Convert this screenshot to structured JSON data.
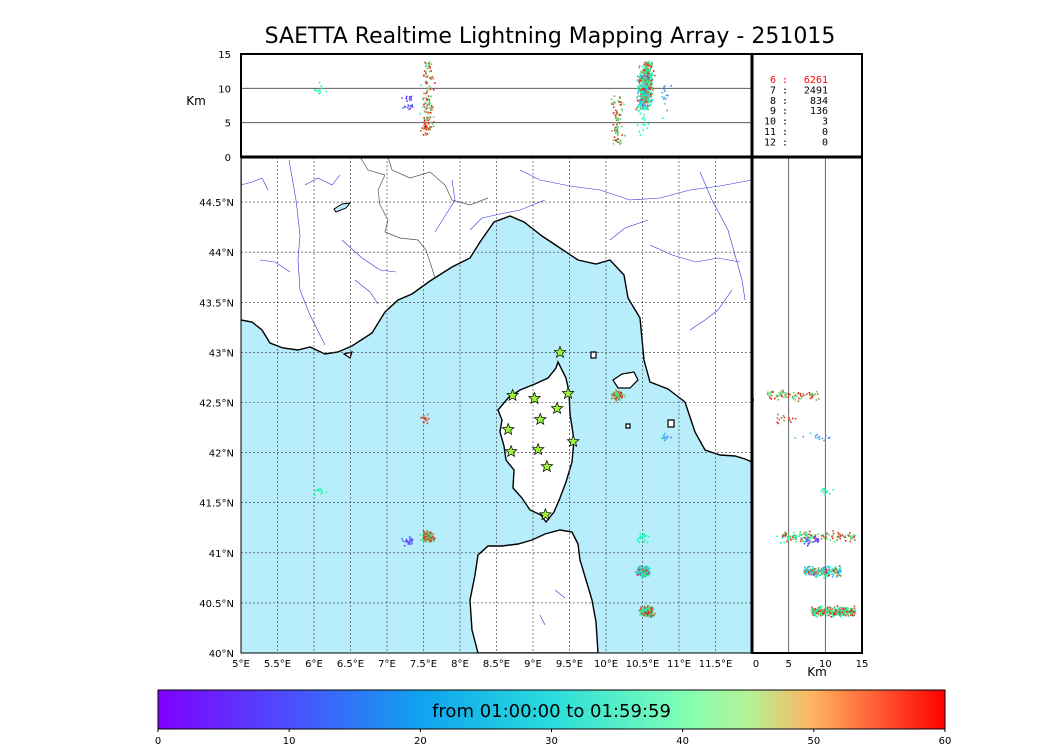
{
  "title": "SAETTA Realtime Lightning Mapping Array - 251015",
  "colors": {
    "sea": "#b8eefb",
    "land": "#ffffff",
    "coast": "#000000",
    "rivers": "#3333dd",
    "borders": "#555555",
    "station": "#9cf53a"
  },
  "altitude_panel": {
    "ylabel": "Km",
    "y_ticks": [
      "15",
      "10",
      "5",
      "0"
    ],
    "y_range": [
      0,
      15
    ],
    "horizontal_lines_km": [
      5,
      10
    ]
  },
  "side_panel": {
    "xlabel": "Km",
    "x_ticks": [
      "0",
      "5",
      "10",
      "15"
    ],
    "x_range": [
      0,
      15
    ],
    "vertical_lines_km": [
      5,
      10
    ]
  },
  "map": {
    "lon_range": [
      5,
      12
    ],
    "lat_range": [
      40,
      44.95
    ],
    "lon_ticks": [
      "5°E",
      "5.5°E",
      "6°E",
      "6.5°E",
      "7°E",
      "7.5°E",
      "8°E",
      "8.5°E",
      "9°E",
      "9.5°E",
      "10°E",
      "10.5°E",
      "11°E",
      "11.5°E"
    ],
    "lon_values": [
      5,
      5.5,
      6,
      6.5,
      7,
      7.5,
      8,
      8.5,
      9,
      9.5,
      10,
      10.5,
      11,
      11.5
    ],
    "lat_ticks": [
      "44.5°N",
      "44°N",
      "43.5°N",
      "43°N",
      "42.5°N",
      "42°N",
      "41.5°N",
      "41°N",
      "40.5°N",
      "40°N"
    ],
    "lat_values": [
      44.5,
      44,
      43.5,
      43,
      42.5,
      42,
      41.5,
      41,
      40.5,
      40
    ],
    "grid": "dotted",
    "stations": [
      {
        "lon": 9.37,
        "lat": 43.0
      },
      {
        "lon": 8.72,
        "lat": 42.57
      },
      {
        "lon": 9.02,
        "lat": 42.54
      },
      {
        "lon": 9.48,
        "lat": 42.59
      },
      {
        "lon": 9.33,
        "lat": 42.44
      },
      {
        "lon": 9.1,
        "lat": 42.33
      },
      {
        "lon": 8.66,
        "lat": 42.23
      },
      {
        "lon": 9.55,
        "lat": 42.11
      },
      {
        "lon": 8.7,
        "lat": 42.01
      },
      {
        "lon": 9.07,
        "lat": 42.03
      },
      {
        "lon": 9.19,
        "lat": 41.86
      },
      {
        "lon": 9.17,
        "lat": 41.38
      }
    ]
  },
  "stations_count_table": [
    {
      "stations": "6",
      "count": "6261",
      "highlight": true
    },
    {
      "stations": "7",
      "count": "2491",
      "highlight": false
    },
    {
      "stations": "8",
      "count": "834",
      "highlight": false
    },
    {
      "stations": "9",
      "count": "136",
      "highlight": false
    },
    {
      "stations": "10",
      "count": "3",
      "highlight": false
    },
    {
      "stations": "11",
      "count": "0",
      "highlight": false
    },
    {
      "stations": "12",
      "count": "0",
      "highlight": false
    }
  ],
  "colorbar": {
    "label": "from 01:00:00 to 01:59:59",
    "ticks": [
      "0",
      "10",
      "20",
      "30",
      "40",
      "50",
      "60"
    ],
    "range_minutes": [
      0,
      60
    ],
    "colormap": "rainbow"
  },
  "chart_data": {
    "type": "scatter",
    "title": "SAETTA Realtime Lightning Mapping Array - 251015",
    "color_by": "time (minutes after 01:00:00)",
    "clusters": [
      {
        "lon": 10.55,
        "lat": 40.42,
        "alt_range_km": [
          8,
          14
        ],
        "time_range_min": [
          25,
          60
        ],
        "density": 300
      },
      {
        "lon": 10.5,
        "lat": 40.82,
        "alt_range_km": [
          7,
          12
        ],
        "time_range_min": [
          5,
          60
        ],
        "density": 220
      },
      {
        "lon": 10.15,
        "lat": 42.58,
        "alt_range_km": [
          2,
          9
        ],
        "time_range_min": [
          35,
          60
        ],
        "density": 80
      },
      {
        "lon": 7.55,
        "lat": 41.17,
        "alt_range_km": [
          4,
          14
        ],
        "time_range_min": [
          35,
          60
        ],
        "density": 130
      },
      {
        "lon": 7.29,
        "lat": 41.13,
        "alt_range_km": [
          7,
          9
        ],
        "time_range_min": [
          3,
          10
        ],
        "density": 25
      },
      {
        "lon": 7.52,
        "lat": 42.33,
        "alt_range_km": [
          3,
          6
        ],
        "time_range_min": [
          50,
          60
        ],
        "density": 15
      },
      {
        "lon": 10.8,
        "lat": 42.16,
        "alt_range_km": [
          5,
          11
        ],
        "time_range_min": [
          10,
          20
        ],
        "density": 15
      },
      {
        "lon": 6.07,
        "lat": 41.63,
        "alt_range_km": [
          9,
          11
        ],
        "time_range_min": [
          30,
          36
        ],
        "density": 12
      },
      {
        "lon": 10.5,
        "lat": 41.15,
        "alt_range_km": [
          3,
          8
        ],
        "time_range_min": [
          25,
          35
        ],
        "density": 20
      }
    ]
  }
}
